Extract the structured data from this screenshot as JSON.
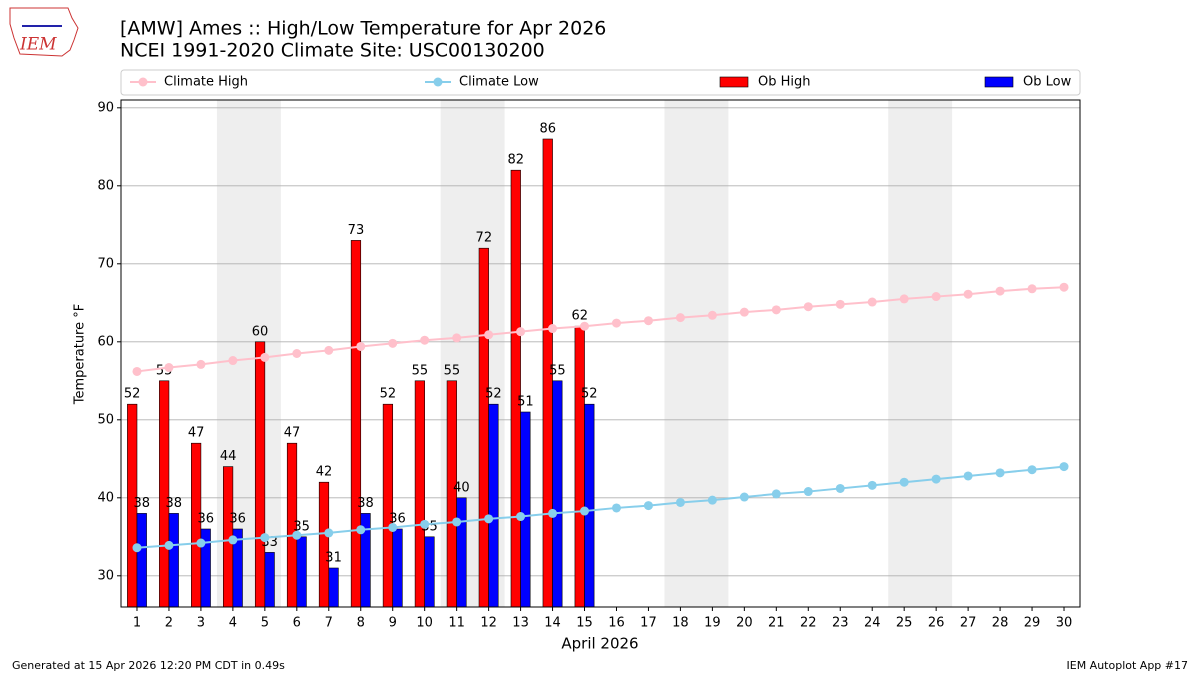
{
  "chart_data": {
    "type": "bar_line",
    "title": "[AMW] Ames :: High/Low Temperature for Apr 2026",
    "subtitle": "NCEI 1991-2020 Climate Site: USC00130200",
    "logo_text": "IEM",
    "x_label": "April 2026",
    "y_label": "Temperature °F",
    "footer_left": "Generated at 15 Apr 2026 12:20 PM CDT in 0.49s",
    "footer_right": "IEM Autoplot App #17",
    "x": [
      1,
      2,
      3,
      4,
      5,
      6,
      7,
      8,
      9,
      10,
      11,
      12,
      13,
      14,
      15,
      16,
      17,
      18,
      19,
      20,
      21,
      22,
      23,
      24,
      25,
      26,
      27,
      28,
      29,
      30
    ],
    "xlim": [
      0.5,
      30.5
    ],
    "xticks": [
      1,
      2,
      3,
      4,
      5,
      6,
      7,
      8,
      9,
      10,
      11,
      12,
      13,
      14,
      15,
      16,
      17,
      18,
      19,
      20,
      21,
      22,
      23,
      24,
      25,
      26,
      27,
      28,
      29,
      30
    ],
    "ylim": [
      26,
      91
    ],
    "yticks": [
      30,
      40,
      50,
      60,
      70,
      80,
      90
    ],
    "grid": true,
    "shaded_spans": [
      [
        3.5,
        5.5
      ],
      [
        10.5,
        12.5
      ],
      [
        17.5,
        19.5
      ],
      [
        24.5,
        26.5
      ]
    ],
    "series": [
      {
        "name": "Climate High",
        "kind": "line",
        "color": "#ffc0cb",
        "values": [
          56.2,
          56.7,
          57.1,
          57.6,
          58.0,
          58.5,
          58.9,
          59.4,
          59.8,
          60.2,
          60.5,
          60.9,
          61.3,
          61.7,
          62.0,
          62.4,
          62.7,
          63.1,
          63.4,
          63.8,
          64.1,
          64.5,
          64.8,
          65.1,
          65.5,
          65.8,
          66.1,
          66.5,
          66.8,
          67.0
        ]
      },
      {
        "name": "Climate Low",
        "kind": "line",
        "color": "#87ceeb",
        "values": [
          33.6,
          33.9,
          34.2,
          34.6,
          34.9,
          35.2,
          35.5,
          35.9,
          36.2,
          36.6,
          36.9,
          37.3,
          37.6,
          38.0,
          38.3,
          38.7,
          39.0,
          39.4,
          39.7,
          40.1,
          40.5,
          40.8,
          41.2,
          41.6,
          42.0,
          42.4,
          42.8,
          43.2,
          43.6,
          44.0
        ]
      },
      {
        "name": "Ob High",
        "kind": "bar",
        "offset": -0.3,
        "color": "#ff0000",
        "values": [
          52,
          55,
          47,
          44,
          60,
          47,
          42,
          73,
          52,
          55,
          55,
          72,
          82,
          86,
          62,
          null,
          null,
          null,
          null,
          null,
          null,
          null,
          null,
          null,
          null,
          null,
          null,
          null,
          null,
          null
        ]
      },
      {
        "name": "Ob Low",
        "kind": "bar",
        "offset": 0,
        "color": "#0000ff",
        "values": [
          38,
          38,
          36,
          36,
          33,
          35,
          31,
          38,
          36,
          35,
          40,
          52,
          51,
          55,
          52,
          null,
          null,
          null,
          null,
          null,
          null,
          null,
          null,
          null,
          null,
          null,
          null,
          null,
          null,
          null
        ]
      }
    ]
  }
}
